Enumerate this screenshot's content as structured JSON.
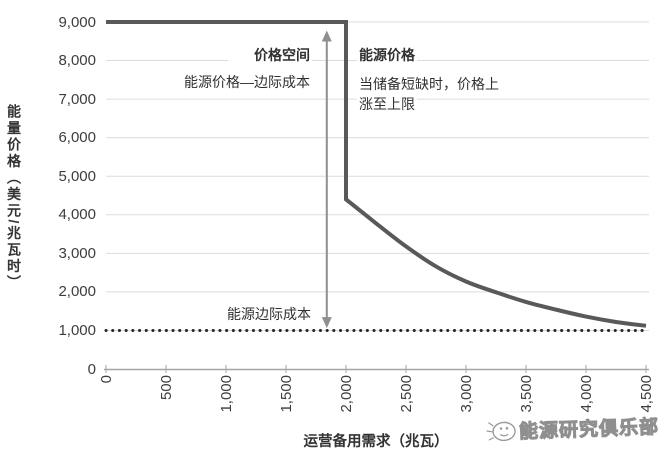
{
  "watermark": {
    "label": "能源研究俱乐部",
    "icon": "doodle-face-icon",
    "color": "#8f8f8f"
  },
  "chart_data": {
    "type": "line",
    "xlabel": "运营备用需求（兆瓦）",
    "ylabel": "能量价格（美元/兆瓦时）",
    "xlim": [
      0,
      4500
    ],
    "ylim": [
      0,
      9000
    ],
    "grid": {
      "horizontal": true,
      "color": "#dcdcdc"
    },
    "axis_color": "#a6a6a6",
    "legend": "none",
    "x_ticks": {
      "values": [
        0,
        500,
        1000,
        1500,
        2000,
        2500,
        3000,
        3500,
        4000,
        4500
      ],
      "labels": [
        "0",
        "500",
        "1,000",
        "1,500",
        "2,000",
        "2,500",
        "3,000",
        "3,500",
        "4,000",
        "4,500"
      ],
      "rotation": -90
    },
    "y_ticks": {
      "values": [
        0,
        1000,
        2000,
        3000,
        4000,
        5000,
        6000,
        7000,
        8000,
        9000
      ],
      "labels": [
        "0",
        "1,000",
        "2,000",
        "3,000",
        "4,000",
        "5,000",
        "6,000",
        "7,000",
        "8,000",
        "9,000"
      ]
    },
    "series": [
      {
        "name": "能源价格",
        "color": "#595959",
        "width": 4,
        "style": "solid",
        "segments": [
          {
            "shape": "line",
            "points": [
              [
                0,
                9000
              ],
              [
                2000,
                9000
              ],
              [
                2000,
                4400
              ]
            ]
          },
          {
            "shape": "smooth",
            "points": [
              [
                2000,
                4400
              ],
              [
                2250,
                3780
              ],
              [
                2500,
                3180
              ],
              [
                2750,
                2660
              ],
              [
                3000,
                2270
              ],
              [
                3250,
                1990
              ],
              [
                3500,
                1740
              ],
              [
                3750,
                1540
              ],
              [
                4000,
                1360
              ],
              [
                4250,
                1220
              ],
              [
                4500,
                1120
              ]
            ]
          }
        ]
      },
      {
        "name": "能源边际成本",
        "color": "#262626",
        "width": 3,
        "style": "dotted",
        "segments": [
          {
            "shape": "line",
            "points": [
              [
                0,
                1000
              ],
              [
                4500,
                1000
              ]
            ]
          }
        ]
      }
    ],
    "annotations": {
      "arrow": {
        "x": 1840,
        "y_from": 1060,
        "y_to": 8780,
        "color": "#8f8f8f"
      },
      "price_gap": {
        "title": "价格空间",
        "subtitle": "能源价格—边际成本"
      },
      "energy_price": {
        "title": "能源价格",
        "line1": "当储备短缺时，价格上",
        "line2": "涨至上限"
      },
      "marginal_cost": {
        "label": "能源边际成本"
      }
    }
  }
}
